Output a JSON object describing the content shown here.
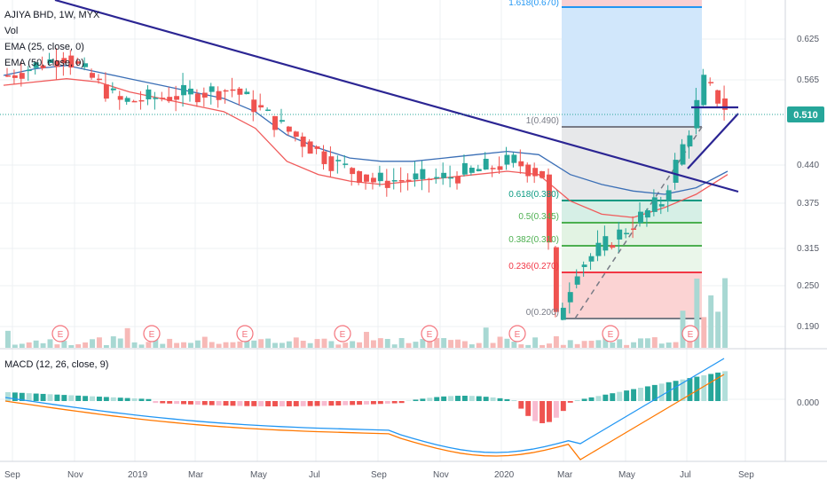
{
  "header": {
    "title": "AJIYA BHD, 1W, MYX",
    "indicators": [
      "Vol",
      "EMA (25, close, 0)",
      "EMA (50, close, 0)"
    ]
  },
  "macd_panel": {
    "title": "MACD (12, 26, close, 9)",
    "zero_label": "0.000"
  },
  "price_axis": {
    "ticks": [
      "0.625",
      "0.565",
      "0.440",
      "0.375",
      "0.315",
      "0.250",
      "0.190"
    ]
  },
  "last_price": {
    "label": "0.510",
    "color": "#26a69a"
  },
  "time_axis": {
    "ticks": [
      "Sep",
      "Nov",
      "2019",
      "Mar",
      "May",
      "Jul",
      "Sep",
      "Nov",
      "2020",
      "Mar",
      "May",
      "Jul",
      "Sep"
    ]
  },
  "earnings": {
    "marker_label": "E"
  },
  "fib": {
    "levels": [
      {
        "label": "1.618(0.670)",
        "color": "#2196f3"
      },
      {
        "label": "1(0.490)",
        "color": "#787b86"
      },
      {
        "label": "0.618(0.380)",
        "color": "#089981"
      },
      {
        "label": "0.5(0.345)",
        "color": "#4caf50"
      },
      {
        "label": "0.382(0.310)",
        "color": "#4caf50"
      },
      {
        "label": "0.236(0.270)",
        "color": "#f23645"
      },
      {
        "label": "0(0.200)",
        "color": "#787b86"
      }
    ]
  },
  "colors": {
    "up": "#26a69a",
    "down": "#ef5350",
    "ema25": "#f05b5b",
    "ema50": "#3b6fb6",
    "trendline": "#2b2593",
    "macd": "#2196f3",
    "signal": "#ff7800"
  },
  "chart_data": {
    "type": "candlestick",
    "title": "AJIYA BHD, 1W, MYX",
    "price_range": [
      0.17,
      0.69
    ],
    "series": [
      {
        "name": "EMA (25, close, 0)",
        "values": [
          0.555,
          0.56,
          0.565,
          0.56,
          0.545,
          0.535,
          0.525,
          0.515,
          0.49,
          0.44,
          0.42,
          0.41,
          0.405,
          0.41,
          0.415,
          0.42,
          0.425,
          0.42,
          0.38,
          0.36,
          0.355,
          0.37,
          0.39,
          0.42
        ]
      },
      {
        "name": "EMA (50, close, 0)",
        "values": [
          0.57,
          0.58,
          0.585,
          0.575,
          0.565,
          0.555,
          0.545,
          0.535,
          0.515,
          0.48,
          0.46,
          0.445,
          0.44,
          0.44,
          0.445,
          0.45,
          0.455,
          0.45,
          0.42,
          0.405,
          0.395,
          0.39,
          0.4,
          0.425
        ]
      }
    ],
    "macd": {
      "zero": 0.0
    }
  }
}
